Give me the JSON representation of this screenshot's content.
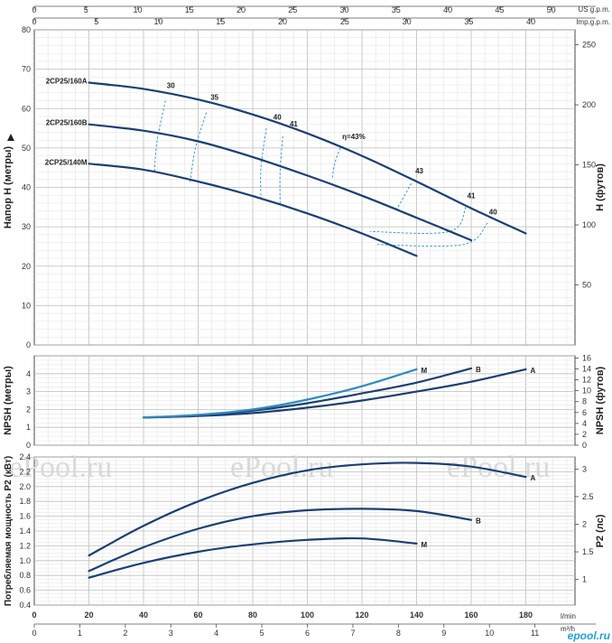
{
  "chart_data": {
    "type": "line",
    "top_scales": {
      "us_gpm": {
        "label": "US g.p.m.",
        "ticks": [
          0,
          5,
          10,
          15,
          20,
          25,
          30,
          35,
          40,
          45,
          50
        ]
      },
      "imp_gpm": {
        "label": "Imp.g.p.m.",
        "ticks": [
          0,
          5,
          10,
          15,
          20,
          25,
          30,
          35,
          40
        ]
      }
    },
    "bottom_scales": {
      "lmin": {
        "label": "l/min",
        "ticks": [
          0,
          20,
          40,
          60,
          80,
          100,
          120,
          140,
          160,
          180
        ]
      },
      "m3h": {
        "label": "m³/h",
        "ticks": [
          0,
          1,
          2,
          3,
          4,
          5,
          6,
          7,
          8,
          9,
          10,
          11
        ]
      }
    },
    "panels": [
      {
        "id": "head",
        "ylabel": "Напор H  (метры)",
        "ylim": [
          0,
          80
        ],
        "yticks": [
          0,
          10,
          20,
          30,
          40,
          50,
          60,
          70,
          80
        ],
        "ylabel_right": "H (футов)",
        "yticks_right": [
          50,
          100,
          150,
          200,
          250
        ],
        "series": [
          {
            "name": "2CP25/160A",
            "x": [
              20,
              40,
              60,
              80,
              100,
              120,
              140,
              160,
              180
            ],
            "y": [
              66.6,
              65,
              62.3,
              58.5,
              53.7,
              48,
              41.5,
              34.7,
              28.3
            ]
          },
          {
            "name": "2CP25/160B",
            "x": [
              20,
              40,
              60,
              80,
              100,
              120,
              140,
              160
            ],
            "y": [
              56,
              54.4,
              51.7,
              47.7,
              43,
              37.9,
              32.3,
              26.6
            ]
          },
          {
            "name": "2CP25/140M",
            "x": [
              20,
              40,
              60,
              80,
              100,
              120,
              140
            ],
            "y": [
              46,
              44.5,
              41.5,
              37.8,
              33.4,
              28.3,
              22.6
            ]
          }
        ],
        "efficiency_labels": [
          {
            "text": "30",
            "x": 50,
            "y": 65.2
          },
          {
            "text": "35",
            "x": 66,
            "y": 62.2
          },
          {
            "text": "40",
            "x": 89,
            "y": 57.2
          },
          {
            "text": "41",
            "x": 95,
            "y": 55.5
          },
          {
            "text": "η=43%",
            "x": 117,
            "y": 52.3
          },
          {
            "text": "43",
            "x": 141,
            "y": 43.5
          },
          {
            "text": "41",
            "x": 160,
            "y": 37.3
          },
          {
            "text": "40",
            "x": 168,
            "y": 33.1
          }
        ]
      },
      {
        "id": "npsh",
        "ylabel": "NPSH (метры)",
        "ylim": [
          0,
          5
        ],
        "yticks": [
          0,
          1,
          2,
          3,
          4
        ],
        "ylabel_right": "NPSH (футов)",
        "yticks_right": [
          0,
          2,
          4,
          6,
          8,
          10,
          12,
          14,
          16
        ],
        "series": [
          {
            "name": "A",
            "x": [
              40,
              60,
              80,
              100,
              120,
              140,
              160,
              180
            ],
            "y": [
              1.55,
              1.63,
              1.8,
              2.1,
              2.5,
              3.0,
              3.55,
              4.25
            ]
          },
          {
            "name": "B",
            "x": [
              40,
              60,
              80,
              100,
              120,
              140,
              160
            ],
            "y": [
              1.55,
              1.66,
              1.93,
              2.35,
              2.9,
              3.5,
              4.3
            ]
          },
          {
            "name": "M",
            "x": [
              40,
              60,
              80,
              100,
              120,
              140
            ],
            "y": [
              1.55,
              1.7,
              2.0,
              2.55,
              3.3,
              4.25
            ]
          }
        ]
      },
      {
        "id": "power",
        "ylabel": "Потребляемая мощность P2 (кВт)",
        "ylim": [
          0.4,
          2.4
        ],
        "yticks": [
          0.4,
          0.6,
          0.8,
          1.0,
          1.2,
          1.4,
          1.6,
          1.8,
          2.0,
          2.2,
          2.4
        ],
        "ylabel_right": "P2 (лс)",
        "yticks_right": [
          1,
          1.5,
          2,
          2.5,
          3
        ],
        "series": [
          {
            "name": "A",
            "x": [
              20,
              40,
              60,
              80,
              100,
              120,
              140,
              160,
              180
            ],
            "y": [
              1.07,
              1.47,
              1.8,
              2.05,
              2.22,
              2.3,
              2.32,
              2.27,
              2.13
            ]
          },
          {
            "name": "B",
            "x": [
              20,
              40,
              60,
              80,
              100,
              120,
              140,
              160
            ],
            "y": [
              0.86,
              1.18,
              1.43,
              1.6,
              1.68,
              1.7,
              1.67,
              1.55
            ]
          },
          {
            "name": "M",
            "x": [
              20,
              40,
              60,
              80,
              100,
              120,
              140
            ],
            "y": [
              0.77,
              0.97,
              1.12,
              1.22,
              1.28,
              1.3,
              1.23
            ]
          }
        ]
      }
    ],
    "watermarks": [
      "ePool.ru",
      "ePool.ru",
      "ePool.ru"
    ],
    "brand": "epool.ru"
  }
}
